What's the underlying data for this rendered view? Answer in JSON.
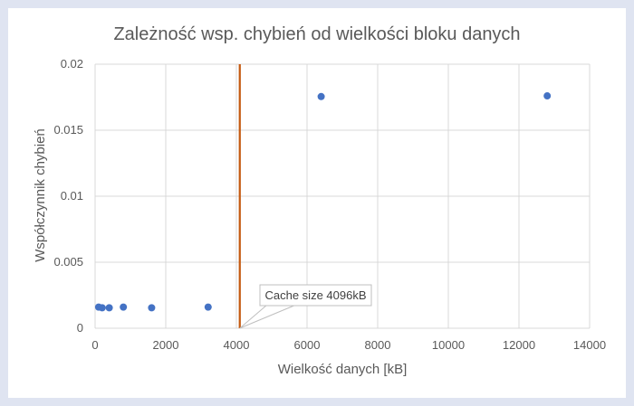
{
  "chart_data": {
    "type": "scatter",
    "title": "Zależność wsp. chybień od wielkości bloku danych",
    "xlabel": "Wielkość danych [kB]",
    "ylabel": "Współczynnik chybień",
    "xlim": [
      0,
      14000
    ],
    "ylim": [
      0,
      0.02
    ],
    "x_ticks": [
      0,
      2000,
      4000,
      6000,
      8000,
      10000,
      12000,
      14000
    ],
    "y_ticks": [
      0,
      0.005,
      0.01,
      0.015,
      0.02
    ],
    "x_tick_labels": [
      "0",
      "2000",
      "4000",
      "6000",
      "8000",
      "10000",
      "12000",
      "14000"
    ],
    "y_tick_labels": [
      "0",
      "0.005",
      "0.01",
      "0.015",
      "0.02"
    ],
    "grid": true,
    "series": [
      {
        "color": "#4472c4",
        "points": [
          {
            "x": 100,
            "y": 0.0016
          },
          {
            "x": 200,
            "y": 0.00155
          },
          {
            "x": 400,
            "y": 0.00155
          },
          {
            "x": 800,
            "y": 0.0016
          },
          {
            "x": 1600,
            "y": 0.00155
          },
          {
            "x": 3200,
            "y": 0.0016
          },
          {
            "x": 6400,
            "y": 0.01755
          },
          {
            "x": 12800,
            "y": 0.0176
          }
        ]
      }
    ],
    "reference_line": {
      "x": 4096,
      "color": "#c55a11"
    },
    "annotation": {
      "text": "Cache size 4096kB",
      "x": 4096,
      "y": 0
    }
  }
}
